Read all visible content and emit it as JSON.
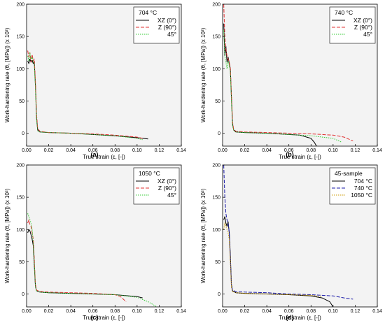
{
  "chart_data": [
    {
      "type": "line",
      "panel_label": "(a)",
      "legend_title": "704 °C",
      "xlabel": "True strain (ε, [-])",
      "ylabel": "Work-hardening rate (θ, [MPa]) (x 10³)",
      "xlim": [
        0,
        0.14
      ],
      "ylim": [
        -20,
        200
      ],
      "xticks": [
        "0.00",
        "0.02",
        "0.04",
        "0.06",
        "0.08",
        "0.10",
        "0.12",
        "0.14"
      ],
      "yticks": [
        "0",
        "50",
        "100",
        "150",
        "200"
      ],
      "legend_placement": "top-right",
      "series": [
        {
          "name": "XZ (0°)",
          "color": "#000000",
          "dash": "solid",
          "points": [
            [
              0.001,
              112
            ],
            [
              0.002,
              108
            ],
            [
              0.003,
              115
            ],
            [
              0.004,
              110
            ],
            [
              0.005,
              113
            ],
            [
              0.006,
              108
            ],
            [
              0.007,
              111
            ],
            [
              0.008,
              75
            ],
            [
              0.009,
              25
            ],
            [
              0.01,
              5
            ],
            [
              0.012,
              2
            ],
            [
              0.02,
              1
            ],
            [
              0.04,
              0
            ],
            [
              0.06,
              -2
            ],
            [
              0.08,
              -4
            ],
            [
              0.1,
              -7
            ],
            [
              0.11,
              -9
            ]
          ]
        },
        {
          "name": "Z (90°)",
          "color": "#e03030",
          "dash": "5,2",
          "points": [
            [
              0.001,
              128
            ],
            [
              0.002,
              118
            ],
            [
              0.003,
              125
            ],
            [
              0.004,
              110
            ],
            [
              0.005,
              122
            ],
            [
              0.006,
              112
            ],
            [
              0.007,
              115
            ],
            [
              0.008,
              80
            ],
            [
              0.009,
              30
            ],
            [
              0.01,
              8
            ],
            [
              0.012,
              3
            ],
            [
              0.02,
              1
            ],
            [
              0.04,
              0
            ],
            [
              0.06,
              -1
            ],
            [
              0.08,
              -3
            ],
            [
              0.1,
              -6
            ],
            [
              0.105,
              -8
            ]
          ]
        },
        {
          "name": "45°",
          "color": "#33cc33",
          "dash": "1.5,1.5",
          "points": [
            [
              0.001,
              120
            ],
            [
              0.002,
              112
            ],
            [
              0.003,
              125
            ],
            [
              0.004,
              115
            ],
            [
              0.005,
              118
            ],
            [
              0.006,
              110
            ],
            [
              0.007,
              108
            ],
            [
              0.008,
              70
            ],
            [
              0.009,
              22
            ],
            [
              0.01,
              4
            ],
            [
              0.012,
              2
            ],
            [
              0.02,
              1
            ],
            [
              0.04,
              0
            ],
            [
              0.06,
              -2
            ],
            [
              0.08,
              -4
            ],
            [
              0.1,
              -8
            ],
            [
              0.105,
              -10
            ]
          ]
        }
      ]
    },
    {
      "type": "line",
      "panel_label": "(b)",
      "legend_title": "740 °C",
      "xlabel": "True strain (ε, [-])",
      "ylabel": "Work-hardening rate (θ, [MPa]) (x 10³)",
      "xlim": [
        0,
        0.14
      ],
      "ylim": [
        -20,
        200
      ],
      "xticks": [
        "0.00",
        "0.02",
        "0.04",
        "0.06",
        "0.08",
        "0.10",
        "0.12",
        "0.14"
      ],
      "yticks": [
        "0",
        "50",
        "100",
        "150",
        "200"
      ],
      "legend_placement": "top-right",
      "series": [
        {
          "name": "XZ (0°)",
          "color": "#000000",
          "dash": "solid",
          "points": [
            [
              0.001,
              170
            ],
            [
              0.002,
              120
            ],
            [
              0.003,
              135
            ],
            [
              0.004,
              110
            ],
            [
              0.005,
              118
            ],
            [
              0.006,
              108
            ],
            [
              0.007,
              100
            ],
            [
              0.008,
              55
            ],
            [
              0.009,
              15
            ],
            [
              0.01,
              5
            ],
            [
              0.012,
              2
            ],
            [
              0.02,
              1
            ],
            [
              0.04,
              0
            ],
            [
              0.06,
              -2
            ],
            [
              0.07,
              -3
            ],
            [
              0.08,
              -8
            ],
            [
              0.083,
              -14
            ],
            [
              0.085,
              -20
            ]
          ]
        },
        {
          "name": "Z (90°)",
          "color": "#e03030",
          "dash": "5,2",
          "points": [
            [
              0.001,
              200
            ],
            [
              0.002,
              150
            ],
            [
              0.003,
              130
            ],
            [
              0.004,
              120
            ],
            [
              0.005,
              115
            ],
            [
              0.006,
              110
            ],
            [
              0.007,
              100
            ],
            [
              0.008,
              60
            ],
            [
              0.009,
              18
            ],
            [
              0.01,
              6
            ],
            [
              0.012,
              3
            ],
            [
              0.02,
              2
            ],
            [
              0.04,
              1
            ],
            [
              0.06,
              0
            ],
            [
              0.08,
              -1
            ],
            [
              0.1,
              -3
            ],
            [
              0.11,
              -6
            ],
            [
              0.118,
              -12
            ]
          ]
        },
        {
          "name": "45°",
          "color": "#33cc33",
          "dash": "1.5,1.5",
          "points": [
            [
              0.001,
              160
            ],
            [
              0.002,
              120
            ],
            [
              0.003,
              110
            ],
            [
              0.004,
              100
            ],
            [
              0.005,
              112
            ],
            [
              0.006,
              105
            ],
            [
              0.007,
              95
            ],
            [
              0.008,
              50
            ],
            [
              0.009,
              12
            ],
            [
              0.01,
              4
            ],
            [
              0.012,
              2
            ],
            [
              0.02,
              1
            ],
            [
              0.04,
              0
            ],
            [
              0.06,
              -2
            ],
            [
              0.08,
              -4
            ],
            [
              0.1,
              -8
            ],
            [
              0.108,
              -14
            ]
          ]
        }
      ]
    },
    {
      "type": "line",
      "panel_label": "(c)",
      "legend_title": "1050 °C",
      "xlabel": "True strain (ε, [-])",
      "ylabel": "Work-hardening rate (θ, [MPa]) (x 10³)",
      "xlim": [
        0,
        0.14
      ],
      "ylim": [
        -20,
        200
      ],
      "xticks": [
        "0.00",
        "0.02",
        "0.04",
        "0.06",
        "0.08",
        "0.10",
        "0.12",
        "0.14"
      ],
      "yticks": [
        "0",
        "50",
        "100",
        "150",
        "200"
      ],
      "legend_placement": "top-right",
      "series": [
        {
          "name": "XZ (0°)",
          "color": "#000000",
          "dash": "solid",
          "points": [
            [
              0.001,
              95
            ],
            [
              0.002,
              100
            ],
            [
              0.003,
              98
            ],
            [
              0.004,
              92
            ],
            [
              0.005,
              85
            ],
            [
              0.006,
              75
            ],
            [
              0.007,
              45
            ],
            [
              0.008,
              12
            ],
            [
              0.009,
              5
            ],
            [
              0.012,
              3
            ],
            [
              0.02,
              2
            ],
            [
              0.04,
              1
            ],
            [
              0.06,
              0
            ],
            [
              0.08,
              -1
            ],
            [
              0.1,
              -4
            ],
            [
              0.105,
              -6
            ]
          ]
        },
        {
          "name": "Z (90°)",
          "color": "#e03030",
          "dash": "5,2",
          "points": [
            [
              0.001,
              110
            ],
            [
              0.002,
              115
            ],
            [
              0.003,
              108
            ],
            [
              0.004,
              105
            ],
            [
              0.005,
              95
            ],
            [
              0.006,
              85
            ],
            [
              0.007,
              55
            ],
            [
              0.008,
              15
            ],
            [
              0.009,
              6
            ],
            [
              0.012,
              4
            ],
            [
              0.02,
              3
            ],
            [
              0.04,
              2
            ],
            [
              0.06,
              1
            ],
            [
              0.08,
              -1
            ],
            [
              0.085,
              -4
            ],
            [
              0.09,
              -12
            ]
          ]
        },
        {
          "name": "45°",
          "color": "#33cc33",
          "dash": "1.5,1.5",
          "points": [
            [
              0.001,
              125
            ],
            [
              0.002,
              120
            ],
            [
              0.003,
              115
            ],
            [
              0.004,
              110
            ],
            [
              0.005,
              100
            ],
            [
              0.006,
              80
            ],
            [
              0.007,
              50
            ],
            [
              0.008,
              12
            ],
            [
              0.009,
              5
            ],
            [
              0.012,
              3
            ],
            [
              0.02,
              2
            ],
            [
              0.04,
              1
            ],
            [
              0.06,
              0
            ],
            [
              0.08,
              -1
            ],
            [
              0.1,
              -5
            ],
            [
              0.11,
              -12
            ],
            [
              0.118,
              -20
            ]
          ]
        }
      ]
    },
    {
      "type": "line",
      "panel_label": "(d)",
      "legend_title": "45-sample",
      "xlabel": "True strain (ε, [-])",
      "ylabel": "Work-hardening rate (θ, [MPa]) (x 10³)",
      "xlim": [
        0,
        0.14
      ],
      "ylim": [
        -20,
        200
      ],
      "xticks": [
        "0.00",
        "0.02",
        "0.04",
        "0.06",
        "0.08",
        "0.10",
        "0.12",
        "0.14"
      ],
      "yticks": [
        "0",
        "50",
        "100",
        "150",
        "200"
      ],
      "legend_placement": "top-right",
      "series": [
        {
          "name": "704 °C",
          "color": "#000000",
          "dash": "solid",
          "points": [
            [
              0.001,
              115
            ],
            [
              0.002,
              120
            ],
            [
              0.003,
              110
            ],
            [
              0.004,
              105
            ],
            [
              0.005,
              112
            ],
            [
              0.006,
              95
            ],
            [
              0.007,
              60
            ],
            [
              0.008,
              15
            ],
            [
              0.009,
              5
            ],
            [
              0.012,
              2
            ],
            [
              0.02,
              1
            ],
            [
              0.04,
              0
            ],
            [
              0.06,
              -1
            ],
            [
              0.08,
              -3
            ],
            [
              0.09,
              -6
            ],
            [
              0.097,
              -12
            ],
            [
              0.1,
              -20
            ]
          ]
        },
        {
          "name": "740 °C",
          "color": "#1a1aa8",
          "dash": "5,2",
          "points": [
            [
              0.001,
              200
            ],
            [
              0.002,
              150
            ],
            [
              0.003,
              125
            ],
            [
              0.004,
              115
            ],
            [
              0.005,
              110
            ],
            [
              0.006,
              95
            ],
            [
              0.007,
              55
            ],
            [
              0.008,
              12
            ],
            [
              0.009,
              6
            ],
            [
              0.012,
              4
            ],
            [
              0.02,
              3
            ],
            [
              0.04,
              2
            ],
            [
              0.06,
              0
            ],
            [
              0.08,
              -1
            ],
            [
              0.1,
              -3
            ],
            [
              0.11,
              -6
            ],
            [
              0.118,
              -8
            ]
          ]
        },
        {
          "name": "1050 °C",
          "color": "#cc9900",
          "dash": "1.5,1.5",
          "points": [
            [
              0.001,
              100
            ],
            [
              0.002,
              110
            ],
            [
              0.003,
              105
            ],
            [
              0.004,
              100
            ],
            [
              0.005,
              95
            ],
            [
              0.006,
              85
            ],
            [
              0.007,
              50
            ],
            [
              0.008,
              10
            ],
            [
              0.009,
              4
            ],
            [
              0.012,
              2
            ],
            [
              0.02,
              1
            ],
            [
              0.04,
              0
            ],
            [
              0.06,
              -1
            ],
            [
              0.08,
              -2
            ],
            [
              0.09,
              -4
            ]
          ]
        }
      ]
    }
  ]
}
